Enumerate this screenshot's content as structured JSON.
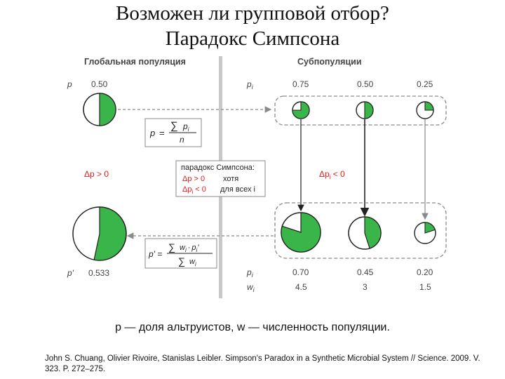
{
  "title": {
    "line1": "Возможен ли групповой отбор?",
    "line2": "Парадокс Симпсона"
  },
  "figure": {
    "global_header": "Глобальная популяция",
    "sub_header": "Субпопуляции",
    "p_label": "p",
    "p_value": "0.50",
    "pi_label": "p",
    "pi_sub": "i",
    "pi_values": [
      "0.75",
      "0.50",
      "0.25"
    ],
    "formula1": {
      "lhs": "p",
      "eq": "=",
      "sigma": "∑",
      "num_p": "p",
      "num_sub": "i",
      "den": "n"
    },
    "delta_left": "Δp > 0",
    "delta_right": "Δp",
    "delta_right_sub": "i",
    "delta_right_tail": "< 0",
    "paradox_box": {
      "title": "парадокс Симпсона:",
      "line1_red": "Δp > 0",
      "line1_black": "хотя",
      "line2_red": "Δp",
      "line2_sub": "i",
      "line2_red_tail": "< 0",
      "line2_black": "для всех i"
    },
    "formula2": {
      "lhs": "p' =",
      "sigma": "∑",
      "num_w": "w",
      "num_w_sub": "i",
      "num_dot": "·",
      "num_p": "p",
      "num_p_sub": "i",
      "num_prime": "'",
      "den_w": "w",
      "den_w_sub": "i"
    },
    "p_prime_label": "p'",
    "p_prime_value": "0.533",
    "pi_prime_label": "p",
    "pi_prime_sub": "i",
    "pi_prime_values": [
      "0.70",
      "0.45",
      "0.20"
    ],
    "wi_label": "w",
    "wi_sub": "i",
    "wi_values": [
      "4.5",
      "3",
      "1.5"
    ],
    "colors": {
      "green": "#3ab54a",
      "red": "#e02020",
      "gray": "#8a8a8a",
      "divider": "#c8c8c8"
    }
  },
  "caption": "p — доля альтруистов, w — численность популяции.",
  "citation": "John S. Chuang, Olivier Rivoire, Stanislas Leibler. Simpson's Paradox in a Synthetic Microbial System // Science. 2009. V. 323. P. 272–275."
}
